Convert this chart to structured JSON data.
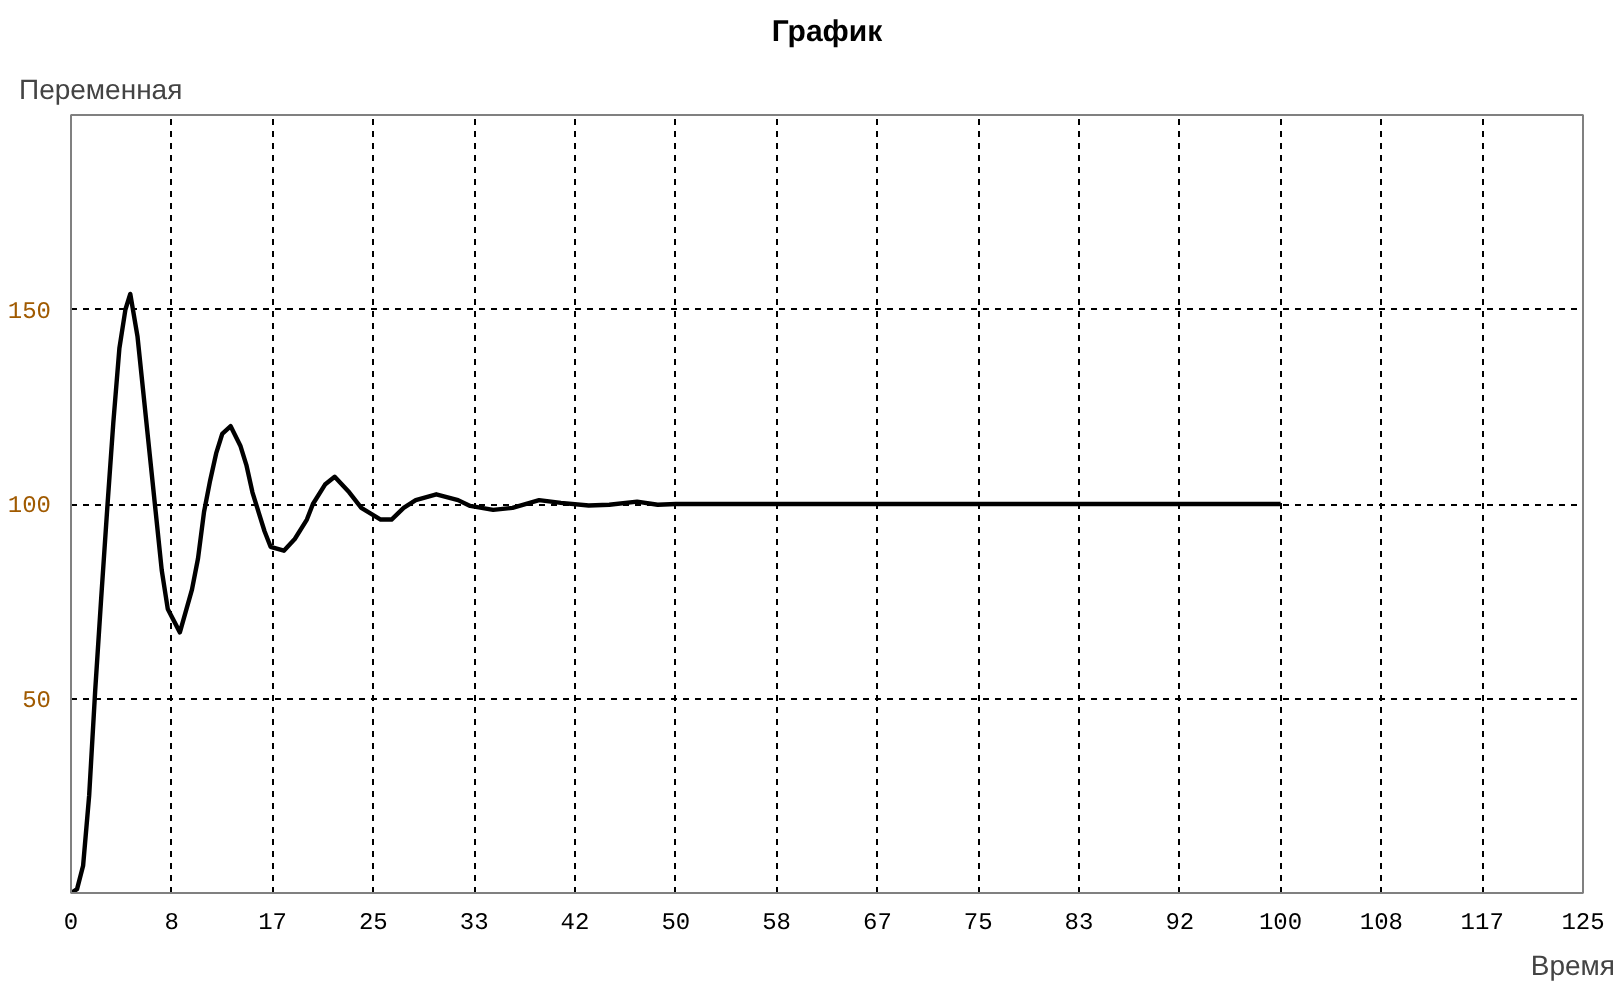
{
  "chart_data": {
    "type": "line",
    "title": "График",
    "xlabel": "Время",
    "ylabel": "Переменная",
    "x": [
      0,
      0.5,
      1,
      1.5,
      2,
      2.5,
      3,
      3.5,
      4,
      4.5,
      4.9,
      5.5,
      6,
      6.5,
      7,
      7.5,
      8,
      9,
      10,
      10.5,
      11,
      11.5,
      12,
      12.5,
      13.2,
      14,
      14.5,
      15,
      15.5,
      16,
      16.5,
      17.6,
      18.5,
      19.5,
      20,
      21,
      21.8,
      23,
      24,
      25.6,
      26.5,
      27.5,
      28.5,
      30.2,
      32,
      33,
      34.9,
      36.5,
      38.7,
      40.5,
      42.8,
      44.5,
      46.8,
      48.5,
      50,
      100
    ],
    "series": [
      {
        "color": "#000000",
        "values": [
          0,
          1,
          7,
          25,
          52,
          76,
          99,
          121,
          140,
          150,
          154,
          143,
          128,
          113,
          98,
          83,
          73,
          67,
          78,
          86,
          98,
          106,
          113,
          118,
          120,
          115,
          110,
          103,
          98,
          93,
          89,
          88,
          91,
          96,
          100,
          105,
          107,
          103,
          99,
          96,
          96,
          99,
          101,
          102.5,
          101,
          99.5,
          98.5,
          99,
          101,
          100.3,
          99.6,
          99.8,
          100.6,
          99.8,
          100,
          100
        ]
      }
    ],
    "xlim": [
      0,
      125
    ],
    "ylim": [
      0,
      200
    ],
    "xticks": [
      0,
      {
        "value": 8.333,
        "label": "8"
      },
      {
        "value": 16.667,
        "label": "17"
      },
      25,
      {
        "value": 33.333,
        "label": "33"
      },
      {
        "value": 41.667,
        "label": "42"
      },
      50,
      {
        "value": 58.333,
        "label": "58"
      },
      {
        "value": 66.667,
        "label": "67"
      },
      75,
      {
        "value": 83.333,
        "label": "83"
      },
      {
        "value": 91.667,
        "label": "92"
      },
      100,
      {
        "value": 108.333,
        "label": "108"
      },
      {
        "value": 116.667,
        "label": "117"
      },
      125
    ],
    "yticks": [
      50,
      100,
      150
    ],
    "grid": true,
    "marker": "none",
    "line_style": "solid"
  }
}
